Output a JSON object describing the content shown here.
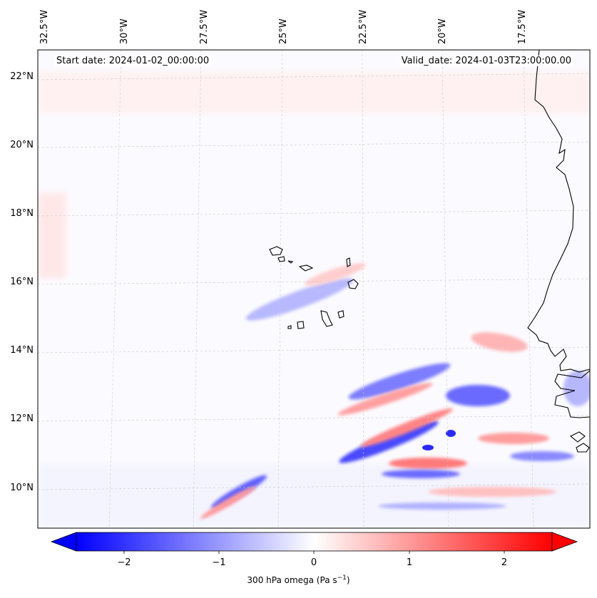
{
  "header": {
    "start_label": "Start date: 2024-01-02_00:00:00",
    "valid_label": "Valid_date: 2024-01-03T23:00:00.00"
  },
  "map": {
    "lon_ticks": [
      "32.5°W",
      "30°W",
      "27.5°W",
      "25°W",
      "22.5°W",
      "20°W",
      "17.5°W"
    ],
    "lat_ticks": [
      "22°N",
      "20°N",
      "18°N",
      "16°N",
      "14°N",
      "12°N",
      "10°N"
    ]
  },
  "colorbar": {
    "ticks": [
      "−2",
      "−1",
      "0",
      "1",
      "2"
    ],
    "label_prefix": "300 hPa omega (Pa s",
    "label_exp": "−1",
    "label_suffix": ")",
    "colors": {
      "negative": "#0000ff",
      "zero": "#ffffff",
      "positive": "#ff0000"
    }
  }
}
